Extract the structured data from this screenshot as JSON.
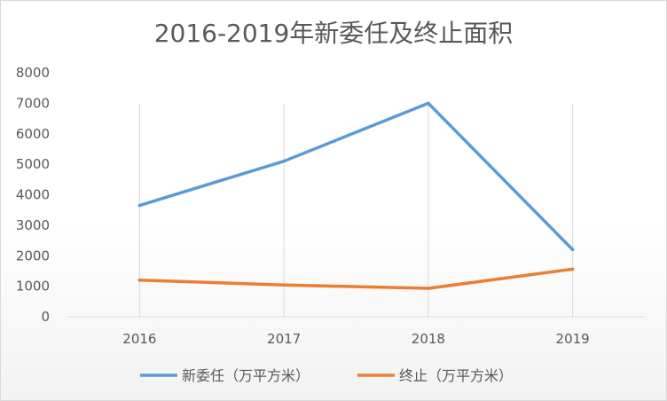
{
  "chart_data": {
    "type": "line",
    "title": "2016-2019年新委任及终止面积",
    "categories": [
      "2016",
      "2017",
      "2018",
      "2019"
    ],
    "series": [
      {
        "name": "新委任（万平方米）",
        "values": [
          3650,
          5100,
          7000,
          2200
        ],
        "color": "#5b9bd5"
      },
      {
        "name": "终止（万平方米）",
        "values": [
          1200,
          1040,
          930,
          1560
        ],
        "color": "#ed7d31"
      }
    ],
    "ylim": [
      0,
      8000
    ],
    "yticks": [
      "0",
      "1000",
      "2000",
      "3000",
      "4000",
      "5000",
      "6000",
      "7000",
      "8000"
    ],
    "grid": "vertical",
    "legend_position": "bottom",
    "axis_color": "#d9d9d9",
    "grid_color": "#d9d9d9"
  }
}
